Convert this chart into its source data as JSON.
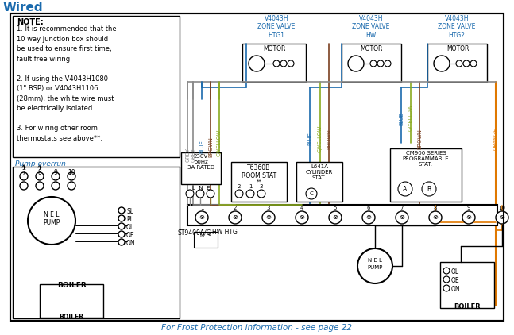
{
  "title": "Wired",
  "title_color": "#1a6aad",
  "bg_color": "#ffffff",
  "border_color": "#000000",
  "note_title": "NOTE:",
  "note_line1": "1. It is recommended that the",
  "note_line2": "10 way junction box should",
  "note_line3": "be used to ensure first time,",
  "note_line4": "fault free wiring.",
  "note_line5": "2. If using the V4043H1080",
  "note_line6": "(1\" BSP) or V4043H1106",
  "note_line7": "(28mm), the white wire must",
  "note_line8": "be electrically isolated.",
  "note_line9": "3. For wiring other room",
  "note_line10": "thermostats see above**.",
  "pump_overrun": "Pump overrun",
  "frost_text": "For Frost Protection information - see page 22",
  "frost_color": "#1a6aad",
  "zv_color": "#1a6aad",
  "zv1": "V4043H\nZONE VALVE\nHTG1",
  "zv2": "V4043H\nZONE VALVE\nHW",
  "zv3": "V4043H\nZONE VALVE\nHTG2",
  "grey": "#8a8a8a",
  "blue": "#1a6aad",
  "brown": "#7a4020",
  "gyellow": "#8aaa20",
  "orange": "#e07800",
  "black": "#000000",
  "white": "#ffffff",
  "red": "#cc0000"
}
